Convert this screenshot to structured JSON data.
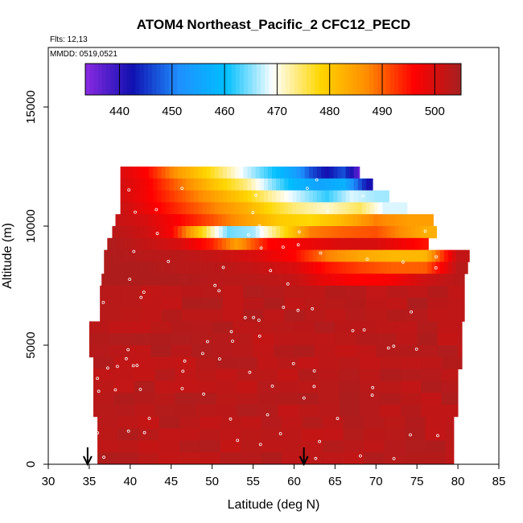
{
  "chart_data": {
    "type": "heatmap",
    "title": "ATOM4 Northeast_Pacific_2 CFC12_PECD",
    "flights_label": "Flts: 12,13",
    "dates_label": "MMDD: 0519,0521",
    "xlabel": "Latitude (deg N)",
    "ylabel": "Altitude (m)",
    "xlim": [
      30,
      85
    ],
    "ylim": [
      0,
      17500
    ],
    "x_ticks": [
      "30",
      "35",
      "40",
      "45",
      "50",
      "55",
      "60",
      "65",
      "70",
      "75",
      "80",
      "85"
    ],
    "y_ticks": [
      "0",
      "5000",
      "10000",
      "15000"
    ],
    "colorbar": {
      "range": [
        433.5,
        505
      ],
      "ticks": [
        "440",
        "450",
        "460",
        "470",
        "480",
        "490",
        "500"
      ],
      "colors": [
        "#8a2be2",
        "#1010b0",
        "#1e90ff",
        "#00bfff",
        "#ffffff",
        "#ffd700",
        "#ff8c00",
        "#ff0000",
        "#a52020"
      ]
    },
    "profile_arrows_lat": [
      34.8,
      61.2
    ],
    "altitude_bins_m": [
      12250,
      11750,
      11250,
      10750,
      10250,
      9750,
      9250,
      8750,
      8250,
      7750
    ],
    "sample_rows": [
      {
        "alt": 12250,
        "lat": [
          38.5,
          42,
          46,
          50,
          54,
          57,
          60,
          62,
          64,
          66,
          68
        ],
        "values": [
          500,
          496,
          485,
          477,
          468,
          462,
          455,
          447,
          442,
          447,
          436
        ]
      },
      {
        "alt": 11750,
        "lat": [
          38.5,
          42,
          46,
          50,
          54,
          57,
          60,
          63,
          66,
          69
        ],
        "values": [
          501,
          497,
          489,
          481,
          474,
          466,
          459,
          455,
          458,
          442
        ]
      },
      {
        "alt": 11250,
        "lat": [
          38.5,
          42,
          46,
          50,
          54,
          57,
          60,
          64,
          67,
          70
        ],
        "values": [
          501,
          497,
          491,
          485,
          479,
          473,
          468,
          462,
          468,
          466
        ]
      },
      {
        "alt": 10750,
        "lat": [
          38.5,
          42,
          46,
          50,
          54,
          57,
          60,
          64,
          68,
          71
        ],
        "values": [
          502,
          498,
          493,
          488,
          483,
          478,
          474,
          471,
          475,
          468
        ]
      },
      {
        "alt": 10250,
        "lat": [
          38,
          42,
          46,
          50,
          54,
          58,
          62,
          66,
          70,
          74
        ],
        "values": [
          502,
          500,
          496,
          491,
          485,
          480,
          478,
          482,
          488,
          485
        ]
      },
      {
        "alt": 9750,
        "lat": [
          38,
          42,
          45,
          48,
          50,
          52,
          55,
          58,
          62,
          66,
          70,
          76
        ],
        "values": [
          503,
          501,
          497,
          482,
          472,
          464,
          466,
          475,
          488,
          490,
          491,
          483
        ]
      },
      {
        "alt": 9250,
        "lat": [
          37.5,
          42,
          46,
          50,
          53,
          57,
          62,
          66,
          70,
          76
        ],
        "values": [
          504,
          502,
          500,
          494,
          485,
          496,
          498,
          500,
          500,
          495
        ]
      },
      {
        "alt": 8750,
        "lat": [
          37,
          42,
          46,
          50,
          55,
          60,
          64,
          68,
          72,
          76,
          80
        ],
        "values": [
          504,
          503,
          503,
          502,
          500,
          496,
          488,
          484,
          482,
          482,
          502
        ]
      },
      {
        "alt": 8250,
        "lat": [
          37,
          42,
          46,
          50,
          55,
          60,
          64,
          68,
          72,
          76,
          80
        ],
        "values": [
          504,
          504,
          503,
          503,
          502,
          500,
          495,
          492,
          490,
          490,
          503
        ]
      },
      {
        "alt": 7750,
        "lat": [
          37,
          42,
          46,
          50,
          55,
          60,
          64,
          68,
          72,
          76,
          80
        ],
        "values": [
          504,
          504,
          504,
          503,
          503,
          502,
          498,
          496,
          497,
          501,
          503
        ]
      }
    ],
    "background_value": 503,
    "grid": false,
    "legend": "top (horizontal colorbar)"
  }
}
